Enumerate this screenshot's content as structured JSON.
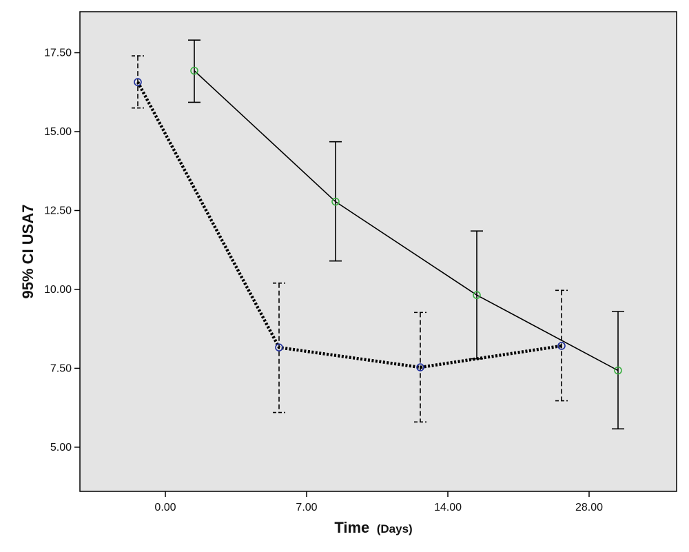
{
  "chart_data": {
    "type": "line",
    "title": "",
    "xlabel": "Time",
    "xlabel_unit": "(Days)",
    "ylabel": "95% CI USA7",
    "x_categories": [
      "0.00",
      "7.00",
      "14.00",
      "28.00"
    ],
    "y_ticks": [
      "5.00",
      "7.50",
      "10.00",
      "12.50",
      "15.00",
      "17.50"
    ],
    "ylim": [
      3.6,
      18.8
    ],
    "grid": false,
    "colors": {
      "plot_background": "#e4e4e4",
      "axis": "#000000",
      "group_a_marker": "#1f2f9c",
      "group_b_marker": "#3cb043"
    },
    "series": [
      {
        "line_style": "dotted",
        "marker": "circle",
        "points": [
          {
            "x": "0.00",
            "mean": 16.57,
            "lower": 15.75,
            "upper": 17.4
          },
          {
            "x": "7.00",
            "mean": 8.16,
            "lower": 6.1,
            "upper": 10.2
          },
          {
            "x": "14.00",
            "mean": 7.53,
            "lower": 5.8,
            "upper": 9.27
          },
          {
            "x": "28.00",
            "mean": 8.21,
            "lower": 6.47,
            "upper": 9.97
          }
        ]
      },
      {
        "line_style": "solid",
        "marker": "circle",
        "points": [
          {
            "x": "0.00",
            "mean": 16.93,
            "lower": 15.93,
            "upper": 17.9
          },
          {
            "x": "7.00",
            "mean": 12.78,
            "lower": 10.9,
            "upper": 14.68
          },
          {
            "x": "14.00",
            "mean": 9.82,
            "lower": 7.8,
            "upper": 11.85
          },
          {
            "x": "28.00",
            "mean": 7.43,
            "lower": 5.58,
            "upper": 9.3
          }
        ]
      }
    ]
  }
}
